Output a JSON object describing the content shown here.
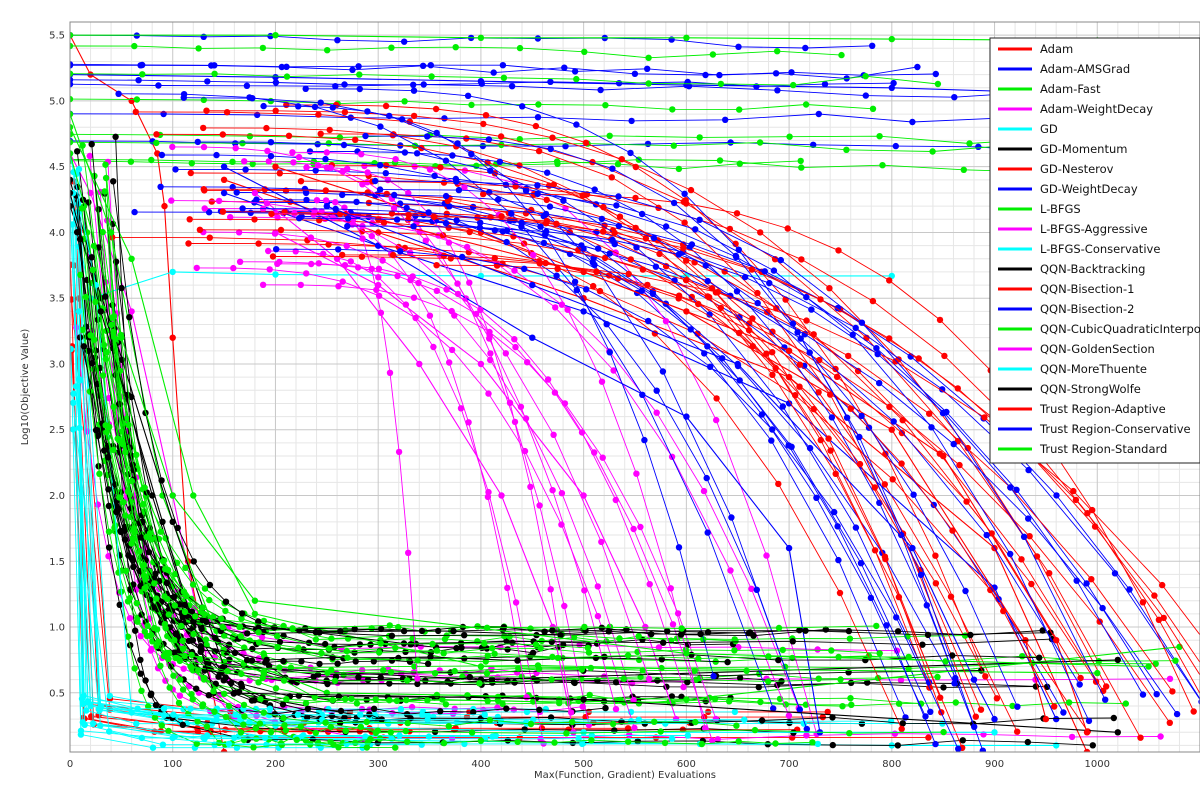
{
  "chart_data": {
    "type": "line",
    "title": "",
    "xlabel": "Max(Function, Gradient) Evaluations",
    "ylabel": "Log10(Objective Value)",
    "xlim": [
      0,
      1100
    ],
    "ylim": [
      0.05,
      5.6
    ],
    "x_ticks": [
      0,
      100,
      200,
      300,
      400,
      500,
      600,
      700,
      800,
      900,
      1000
    ],
    "x_tick_labels": [
      "0",
      "100",
      "200",
      "300",
      "400",
      "500",
      "600",
      "700",
      "800",
      "900",
      "1000"
    ],
    "y_ticks": [
      0.5,
      1.0,
      1.5,
      2.0,
      2.5,
      3.0,
      3.5,
      4.0,
      4.5,
      5.0,
      5.5
    ],
    "y_tick_labels": [
      "0.5",
      "1.0",
      "1.5",
      "2.0",
      "2.5",
      "3.0",
      "3.5",
      "4.0",
      "4.5",
      "5.0",
      "5.5"
    ],
    "grid": true,
    "markers": true,
    "legend_position": "top-right",
    "series": [
      {
        "name": "Adam",
        "color": "#ff0000",
        "style": "slow-decay",
        "x": [
          0,
          20,
          60,
          85,
          92,
          100,
          115,
          150
        ],
        "y": [
          5.5,
          5.2,
          5.0,
          4.6,
          4.2,
          3.2,
          1.5,
          0.05
        ]
      },
      {
        "name": "Adam-AMSGrad",
        "color": "#0000ff",
        "style": "long-plateau",
        "x": [
          0,
          200,
          400,
          600,
          800,
          1000
        ],
        "y": [
          5.2,
          5.18,
          5.15,
          5.12,
          5.1,
          5.05
        ]
      },
      {
        "name": "Adam-Fast",
        "color": "#00ee00",
        "style": "long-plateau",
        "x": [
          0,
          200,
          400,
          600,
          800,
          1000
        ],
        "y": [
          5.5,
          5.5,
          5.48,
          5.48,
          5.47,
          5.46
        ]
      },
      {
        "name": "Adam-WeightDecay",
        "color": "#ff00ff",
        "style": "steep-drop",
        "x": [
          0,
          20,
          60,
          100,
          140,
          160
        ],
        "y": [
          4.6,
          4.3,
          3.4,
          2.0,
          0.5,
          0.3
        ]
      },
      {
        "name": "GD",
        "color": "#00ffff",
        "style": "flat-low",
        "x": [
          0,
          20,
          100,
          200,
          400,
          600,
          800
        ],
        "y": [
          4.3,
          3.5,
          3.7,
          3.68,
          3.67,
          3.67,
          3.67
        ]
      },
      {
        "name": "GD-Momentum",
        "color": "#000000",
        "style": "steep-drop",
        "x": [
          0,
          30,
          80,
          120,
          160,
          300
        ],
        "y": [
          4.4,
          3.5,
          2.0,
          1.0,
          0.5,
          0.3
        ]
      },
      {
        "name": "GD-Nesterov",
        "color": "#ff0000",
        "style": "curve-decay",
        "x": [
          150,
          300,
          500,
          700,
          900,
          990
        ],
        "y": [
          4.4,
          4.0,
          3.5,
          2.9,
          1.6,
          0.05
        ]
      },
      {
        "name": "GD-WeightDecay",
        "color": "#0000ff",
        "style": "curve-decay",
        "x": [
          150,
          300,
          500,
          700,
          900,
          960
        ],
        "y": [
          4.3,
          3.9,
          3.4,
          2.7,
          1.3,
          0.3
        ]
      },
      {
        "name": "L-BFGS",
        "color": "#00ee00",
        "style": "steep-drop",
        "x": [
          0,
          40,
          90,
          150,
          250,
          600,
          1080
        ],
        "y": [
          4.9,
          4.0,
          2.0,
          0.8,
          0.5,
          0.45,
          0.85
        ]
      },
      {
        "name": "L-BFGS-Aggressive",
        "color": "#ff00ff",
        "style": "curve-decay",
        "x": [
          200,
          300,
          400,
          500,
          560,
          590
        ],
        "y": [
          4.0,
          3.6,
          3.0,
          2.0,
          1.0,
          0.3
        ]
      },
      {
        "name": "L-BFGS-Conservative",
        "color": "#00ffff",
        "style": "flat-low",
        "x": [
          0,
          20,
          200,
          500,
          800,
          960
        ],
        "y": [
          4.2,
          0.4,
          0.15,
          0.12,
          0.1,
          0.1
        ]
      },
      {
        "name": "QQN-Backtracking",
        "color": "#000000",
        "style": "steep-drop",
        "x": [
          0,
          40,
          100,
          150,
          400,
          1020
        ],
        "y": [
          4.2,
          3.3,
          1.8,
          0.7,
          0.6,
          0.75
        ]
      },
      {
        "name": "QQN-Bisection-1",
        "color": "#ff0000",
        "style": "curve-decay",
        "x": [
          200,
          400,
          600,
          800,
          930,
          950
        ],
        "y": [
          4.5,
          4.0,
          3.4,
          2.5,
          0.9,
          0.3
        ]
      },
      {
        "name": "QQN-Bisection-2",
        "color": "#0000ff",
        "style": "curve-decay",
        "x": [
          150,
          300,
          450,
          600,
          700,
          730
        ],
        "y": [
          4.5,
          3.9,
          3.2,
          2.6,
          1.6,
          0.2
        ]
      },
      {
        "name": "QQN-CubicQuadraticInterpolation",
        "color": "#00ee00",
        "style": "steep-drop",
        "x": [
          0,
          60,
          120,
          180,
          400,
          1000
        ],
        "y": [
          4.8,
          3.8,
          2.0,
          1.1,
          0.7,
          0.65
        ]
      },
      {
        "name": "QQN-GoldenSection",
        "color": "#ff00ff",
        "style": "curve-decay",
        "x": [
          180,
          260,
          340,
          420,
          470,
          490
        ],
        "y": [
          4.3,
          3.8,
          3.0,
          2.0,
          1.0,
          0.2
        ]
      },
      {
        "name": "QQN-MoreThuente",
        "color": "#00ffff",
        "style": "flat-low",
        "x": [
          0,
          25,
          60,
          200,
          500,
          900
        ],
        "y": [
          4.6,
          3.6,
          0.35,
          0.25,
          0.2,
          0.2
        ]
      },
      {
        "name": "QQN-StrongWolfe",
        "color": "#000000",
        "style": "steep-drop",
        "x": [
          0,
          30,
          90,
          140,
          500,
          1020
        ],
        "y": [
          4.3,
          3.4,
          1.8,
          0.5,
          0.45,
          0.2
        ]
      },
      {
        "name": "Trust Region-Adaptive",
        "color": "#ff0000",
        "style": "curve-decay",
        "x": [
          300,
          500,
          700,
          850,
          960,
          990
        ],
        "y": [
          4.1,
          3.7,
          3.1,
          2.3,
          0.9,
          0.2
        ]
      },
      {
        "name": "Trust Region-Conservative",
        "color": "#0000ff",
        "style": "curve-decay",
        "x": [
          250,
          450,
          650,
          820,
          880,
          900
        ],
        "y": [
          4.2,
          3.6,
          3.0,
          1.6,
          0.6,
          0.3
        ]
      },
      {
        "name": "Trust Region-Standard",
        "color": "#00ee00",
        "style": "steep-drop",
        "x": [
          0,
          50,
          100,
          180,
          600,
          1050
        ],
        "y": [
          4.6,
          3.2,
          2.0,
          1.2,
          0.8,
          0.7
        ]
      }
    ]
  }
}
